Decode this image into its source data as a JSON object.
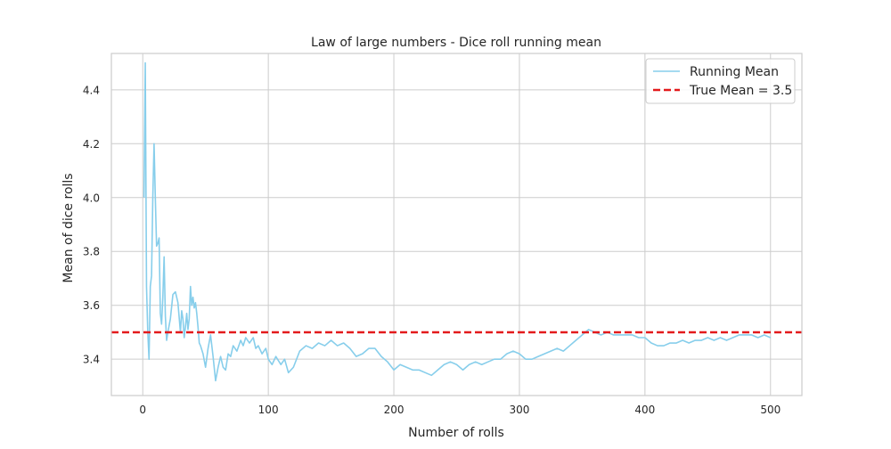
{
  "chart_data": {
    "type": "line",
    "title": "Law of large numbers - Dice roll running mean",
    "xlabel": "Number of rolls",
    "ylabel": "Mean of dice rolls",
    "xlim": [
      -25,
      525
    ],
    "ylim": [
      3.265,
      4.535
    ],
    "xticks": [
      0,
      100,
      200,
      300,
      400,
      500
    ],
    "xtick_labels": [
      "0",
      "100",
      "200",
      "300",
      "400",
      "500"
    ],
    "yticks": [
      3.4,
      3.6,
      3.8,
      4.0,
      4.2,
      4.4
    ],
    "ytick_labels": [
      "3.4",
      "3.6",
      "3.8",
      "4.0",
      "4.2",
      "4.4"
    ],
    "grid": true,
    "legend_position": "upper right",
    "series": [
      {
        "name": "Running Mean",
        "color": "#87ceeb",
        "style": "solid",
        "x": [
          1,
          2,
          3,
          4,
          5,
          6,
          7,
          8,
          9,
          10,
          11,
          12,
          13,
          14,
          15,
          16,
          17,
          18,
          19,
          20,
          22,
          24,
          26,
          28,
          30,
          31,
          32,
          33,
          34,
          35,
          36,
          37,
          38,
          39,
          40,
          41,
          42,
          43,
          44,
          45,
          46,
          48,
          50,
          52,
          54,
          56,
          58,
          60,
          62,
          64,
          66,
          68,
          70,
          72,
          75,
          78,
          80,
          82,
          85,
          88,
          90,
          92,
          95,
          98,
          100,
          103,
          106,
          110,
          113,
          116,
          120,
          125,
          130,
          135,
          140,
          145,
          150,
          155,
          160,
          165,
          170,
          175,
          180,
          185,
          190,
          195,
          200,
          205,
          210,
          215,
          220,
          225,
          230,
          235,
          240,
          245,
          250,
          255,
          260,
          265,
          270,
          275,
          280,
          285,
          290,
          295,
          300,
          305,
          310,
          315,
          320,
          325,
          330,
          335,
          340,
          345,
          350,
          355,
          360,
          365,
          370,
          375,
          380,
          385,
          390,
          395,
          400,
          405,
          410,
          415,
          420,
          425,
          430,
          435,
          440,
          445,
          450,
          455,
          460,
          465,
          470,
          475,
          480,
          485,
          490,
          495,
          500
        ],
        "values": [
          4.0,
          4.5,
          3.67,
          3.5,
          3.4,
          3.67,
          3.71,
          4.0,
          4.2,
          4.0,
          3.82,
          3.83,
          3.85,
          3.57,
          3.53,
          3.63,
          3.78,
          3.56,
          3.47,
          3.5,
          3.55,
          3.64,
          3.65,
          3.61,
          3.5,
          3.58,
          3.55,
          3.48,
          3.52,
          3.57,
          3.51,
          3.55,
          3.67,
          3.6,
          3.63,
          3.59,
          3.61,
          3.57,
          3.52,
          3.46,
          3.45,
          3.42,
          3.37,
          3.44,
          3.49,
          3.41,
          3.32,
          3.37,
          3.41,
          3.37,
          3.36,
          3.42,
          3.41,
          3.45,
          3.43,
          3.47,
          3.45,
          3.48,
          3.46,
          3.48,
          3.44,
          3.45,
          3.42,
          3.44,
          3.4,
          3.38,
          3.41,
          3.38,
          3.4,
          3.35,
          3.37,
          3.43,
          3.45,
          3.44,
          3.46,
          3.45,
          3.47,
          3.45,
          3.46,
          3.44,
          3.41,
          3.42,
          3.44,
          3.44,
          3.41,
          3.39,
          3.36,
          3.38,
          3.37,
          3.36,
          3.36,
          3.35,
          3.34,
          3.36,
          3.38,
          3.39,
          3.38,
          3.36,
          3.38,
          3.39,
          3.38,
          3.39,
          3.4,
          3.4,
          3.42,
          3.43,
          3.42,
          3.4,
          3.4,
          3.41,
          3.42,
          3.43,
          3.44,
          3.43,
          3.45,
          3.47,
          3.49,
          3.51,
          3.5,
          3.49,
          3.5,
          3.49,
          3.49,
          3.49,
          3.49,
          3.48,
          3.48,
          3.46,
          3.45,
          3.45,
          3.46,
          3.46,
          3.47,
          3.46,
          3.47,
          3.47,
          3.48,
          3.47,
          3.48,
          3.47,
          3.48,
          3.49,
          3.49,
          3.49,
          3.48,
          3.49,
          3.48
        ]
      },
      {
        "name": "True Mean = 3.5",
        "color": "#e31a1c",
        "style": "dashed",
        "y": 3.5
      }
    ]
  }
}
